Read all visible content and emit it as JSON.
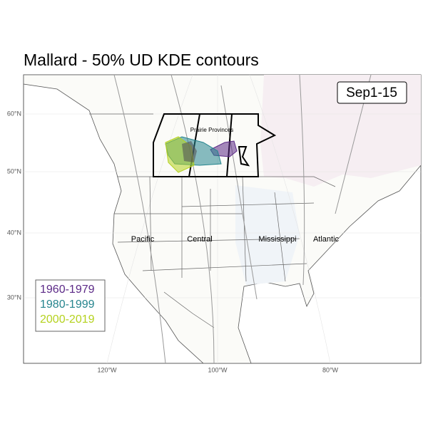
{
  "title": "Mallard - 50% UD KDE contours",
  "period": "Sep1-15",
  "region_label": "Prairie Provinces",
  "flyways": [
    "Pacific",
    "Central",
    "Mississippi",
    "Atlantic"
  ],
  "legend": [
    {
      "label": "1960-1979",
      "color": "#5c2a87"
    },
    {
      "label": "1980-1999",
      "color": "#26858e"
    },
    {
      "label": "2000-2019",
      "color": "#b5d21f"
    }
  ],
  "lat_labels": [
    "60°N",
    "50°N",
    "40°N",
    "30°N"
  ],
  "lon_labels": [
    "120°W",
    "100°W",
    "80°W"
  ]
}
